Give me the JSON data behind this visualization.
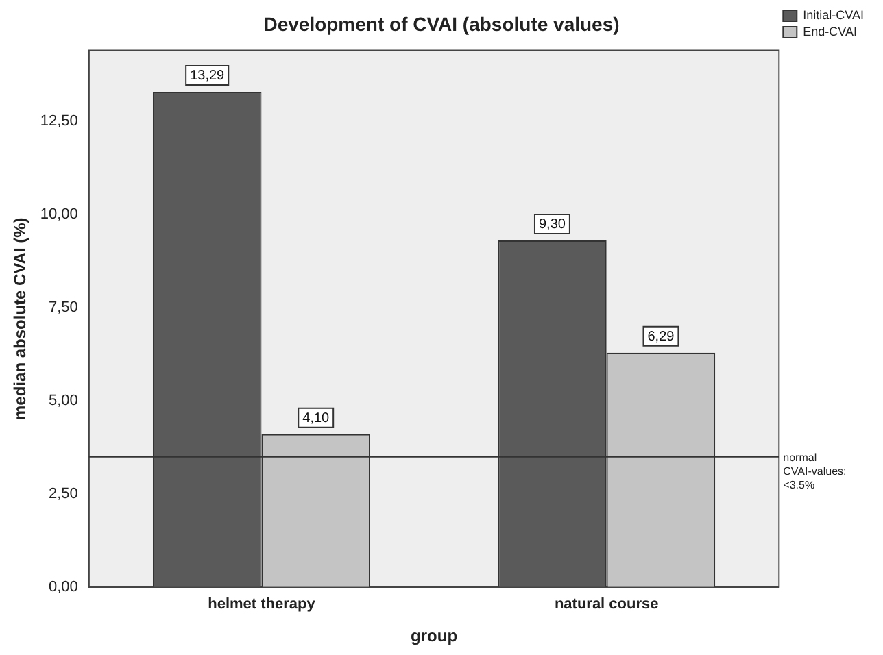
{
  "chart_data": {
    "type": "bar",
    "title": "Development of CVAI (absolute values)",
    "xlabel": "group",
    "ylabel": "median absolute CVAI (%)",
    "categories": [
      "helmet therapy",
      "natural course"
    ],
    "series": [
      {
        "name": "Initial-CVAI",
        "color": "#5a5a5a",
        "values": [
          13.29,
          9.3
        ],
        "value_labels": [
          "13,29",
          "9,30"
        ]
      },
      {
        "name": "End-CVAI",
        "color": "#c4c4c4",
        "values": [
          4.1,
          6.29
        ],
        "value_labels": [
          "4,10",
          "6,29"
        ]
      }
    ],
    "ylim": [
      0,
      14.4
    ],
    "yticks": [
      {
        "value": 0,
        "label": "0,00"
      },
      {
        "value": 2.5,
        "label": "2,50"
      },
      {
        "value": 5,
        "label": "5,00"
      },
      {
        "value": 7.5,
        "label": "7,50"
      },
      {
        "value": 10,
        "label": "10,00"
      },
      {
        "value": 12.5,
        "label": "12,50"
      }
    ],
    "ref_lines": [
      {
        "axis": "y",
        "value": 3.5,
        "label": "normal CVAI-values: <3.5%",
        "color": "#333333"
      }
    ],
    "legend": "top right",
    "grid": false
  }
}
